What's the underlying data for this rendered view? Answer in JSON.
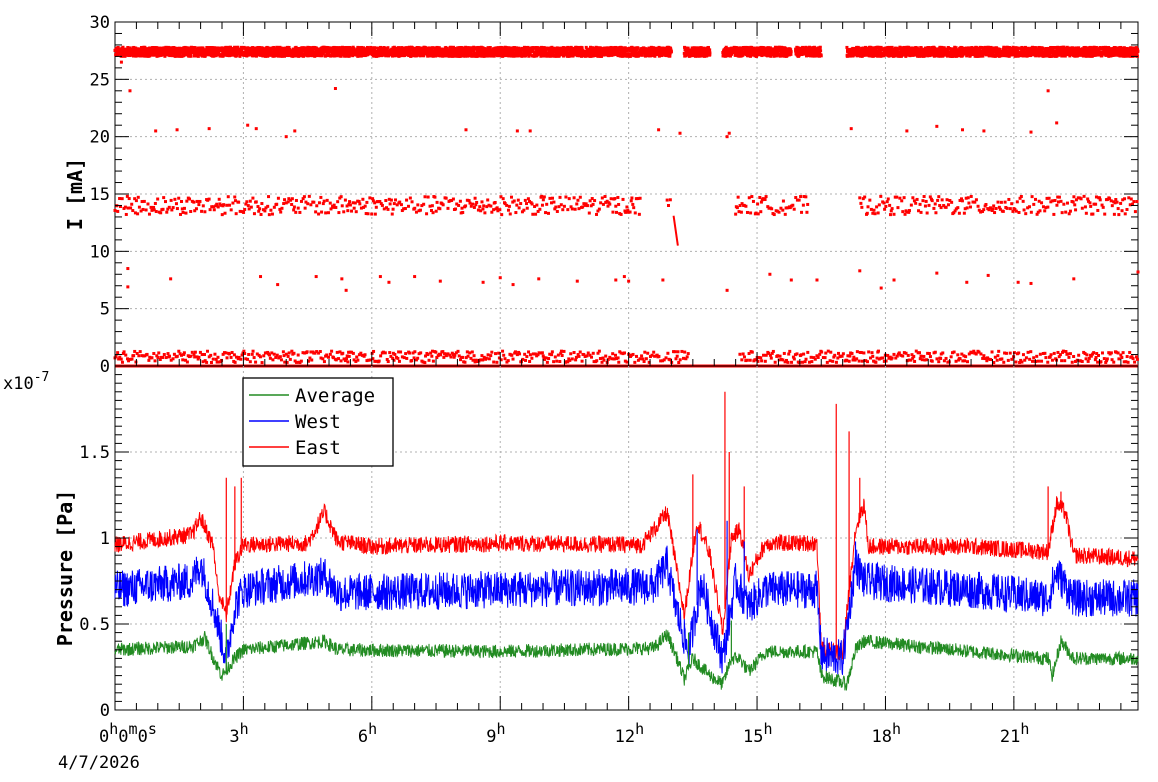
{
  "chart_data": [
    {
      "type": "scatter",
      "ylabel": "I [mA]",
      "ylim": [
        0,
        30
      ],
      "yticks": [
        0,
        5,
        10,
        15,
        20,
        25,
        30
      ],
      "grid": true,
      "x_unit": "hours",
      "xlim": [
        0,
        23.9
      ],
      "series": [
        {
          "color": "#ff0000",
          "bands": [
            {
              "y": 27.4,
              "spread": 0.4,
              "density": "dense",
              "segments": [
                [
                  0,
                  13.0
                ],
                [
                  13.3,
                  13.9
                ],
                [
                  14.2,
                  15.8
                ],
                [
                  15.9,
                  16.5
                ],
                [
                  17.1,
                  23.9
                ]
              ]
            },
            {
              "y": 14.0,
              "spread": 0.8,
              "density": "medium",
              "segments": [
                [
                  0,
                  12.3
                ],
                [
                  12.9,
                  13.0
                ],
                [
                  14.5,
                  16.2
                ],
                [
                  17.4,
                  23.9
                ]
              ]
            },
            {
              "y": 0.8,
              "spread": 0.5,
              "density": "medium",
              "segments": [
                [
                  0,
                  13.4
                ],
                [
                  14.6,
                  23.9
                ]
              ]
            },
            {
              "y": 0.0,
              "spread": 0.0,
              "density": "line",
              "segments": [
                [
                  0,
                  23.9
                ]
              ]
            }
          ],
          "points": [
            [
              0.15,
              26.5
            ],
            [
              0.35,
              24.0
            ],
            [
              0.95,
              20.5
            ],
            [
              1.45,
              20.6
            ],
            [
              2.2,
              20.7
            ],
            [
              3.1,
              21.0
            ],
            [
              3.3,
              20.7
            ],
            [
              4.0,
              20.0
            ],
            [
              4.2,
              20.5
            ],
            [
              5.15,
              24.2
            ],
            [
              8.2,
              20.6
            ],
            [
              9.4,
              20.5
            ],
            [
              9.7,
              20.5
            ],
            [
              12.7,
              20.6
            ],
            [
              13.2,
              20.3
            ],
            [
              14.3,
              20.0
            ],
            [
              14.35,
              20.3
            ],
            [
              17.2,
              20.7
            ],
            [
              18.5,
              20.5
            ],
            [
              19.2,
              20.9
            ],
            [
              19.8,
              20.6
            ],
            [
              20.3,
              20.5
            ],
            [
              21.4,
              20.4
            ],
            [
              21.8,
              24.0
            ],
            [
              22.0,
              21.2
            ],
            [
              0.3,
              8.5
            ],
            [
              0.3,
              6.9
            ],
            [
              1.3,
              7.6
            ],
            [
              3.4,
              7.8
            ],
            [
              3.8,
              7.1
            ],
            [
              4.7,
              7.8
            ],
            [
              5.3,
              7.6
            ],
            [
              5.4,
              6.6
            ],
            [
              6.2,
              7.8
            ],
            [
              6.4,
              7.3
            ],
            [
              7.0,
              7.8
            ],
            [
              7.6,
              7.4
            ],
            [
              8.6,
              7.3
            ],
            [
              9.0,
              7.7
            ],
            [
              9.3,
              7.1
            ],
            [
              9.9,
              7.6
            ],
            [
              10.8,
              7.4
            ],
            [
              11.7,
              7.5
            ],
            [
              11.9,
              7.8
            ],
            [
              12.0,
              7.4
            ],
            [
              12.8,
              7.5
            ],
            [
              14.3,
              6.6
            ],
            [
              15.3,
              8.0
            ],
            [
              15.8,
              7.5
            ],
            [
              16.4,
              7.5
            ],
            [
              17.4,
              8.3
            ],
            [
              17.9,
              6.8
            ],
            [
              18.2,
              7.5
            ],
            [
              19.2,
              8.1
            ],
            [
              19.9,
              7.3
            ],
            [
              20.4,
              7.9
            ],
            [
              21.1,
              7.3
            ],
            [
              21.4,
              7.2
            ],
            [
              22.4,
              7.6
            ],
            [
              23.9,
              8.2
            ]
          ],
          "ramp": [
            [
              13.05,
              13.1
            ],
            [
              13.15,
              10.5
            ]
          ]
        }
      ]
    },
    {
      "type": "line",
      "ylabel": "Pressure [Pa]",
      "exponent_label": "x10",
      "exponent_power": "-7",
      "ylim": [
        0,
        2.0
      ],
      "yticks": [
        0,
        0.5,
        1,
        1.5
      ],
      "ytick_labels": [
        "0",
        "0.5",
        "1",
        "1.5"
      ],
      "grid": true,
      "x_unit": "hours",
      "xlim": [
        0,
        23.9
      ],
      "xticks": [
        0,
        3,
        6,
        9,
        12,
        15,
        18,
        21
      ],
      "xtick_main": [
        "0",
        "3",
        "6",
        "9",
        "12",
        "15",
        "18",
        "21"
      ],
      "xtick_sup": [
        "hm",
        "h",
        "h",
        "h",
        "h",
        "h",
        "h",
        "h"
      ],
      "first_tick_tail": {
        "zero": "0",
        "sec_main": "0",
        "sec_sup": "s"
      },
      "date_label": "4/7/2026",
      "legend": {
        "position": "top-left",
        "entries": [
          {
            "name": "Average",
            "color": "#228b22"
          },
          {
            "name": "West",
            "color": "#0000ff"
          },
          {
            "name": "East",
            "color": "#ff0000"
          }
        ]
      },
      "series": [
        {
          "name": "East",
          "color": "#ff0000",
          "noise": 0.05,
          "points": [
            [
              0,
              0.96
            ],
            [
              1.8,
              1.02
            ],
            [
              2.0,
              1.12
            ],
            [
              2.3,
              0.95
            ],
            [
              2.4,
              0.7
            ],
            [
              2.6,
              0.55
            ],
            [
              2.8,
              0.85
            ],
            [
              3.0,
              0.96
            ],
            [
              4.5,
              0.97
            ],
            [
              4.9,
              1.15
            ],
            [
              5.2,
              0.98
            ],
            [
              6.0,
              0.95
            ],
            [
              9.0,
              0.97
            ],
            [
              12.3,
              0.96
            ],
            [
              12.6,
              1.05
            ],
            [
              12.9,
              1.15
            ],
            [
              13.1,
              0.85
            ],
            [
              13.3,
              0.55
            ],
            [
              13.6,
              1.1
            ],
            [
              13.9,
              0.9
            ],
            [
              14.2,
              0.45
            ],
            [
              14.4,
              1.0
            ],
            [
              14.6,
              1.05
            ],
            [
              14.8,
              0.78
            ],
            [
              15.2,
              0.97
            ],
            [
              16.4,
              0.97
            ],
            [
              16.5,
              0.35
            ],
            [
              17.0,
              0.33
            ],
            [
              17.3,
              1.05
            ],
            [
              17.5,
              1.2
            ],
            [
              17.6,
              0.95
            ],
            [
              20.0,
              0.95
            ],
            [
              21.8,
              0.92
            ],
            [
              22.0,
              1.2
            ],
            [
              22.2,
              1.15
            ],
            [
              22.4,
              0.9
            ],
            [
              23.9,
              0.88
            ]
          ],
          "spikes": [
            [
              2.6,
              1.35
            ],
            [
              2.8,
              1.3
            ],
            [
              2.95,
              1.35
            ],
            [
              13.5,
              1.37
            ],
            [
              14.25,
              1.85
            ],
            [
              14.35,
              1.5
            ],
            [
              14.7,
              1.3
            ],
            [
              16.85,
              1.78
            ],
            [
              17.15,
              1.62
            ],
            [
              17.4,
              1.35
            ],
            [
              21.8,
              1.3
            ],
            [
              22.1,
              1.27
            ]
          ]
        },
        {
          "name": "West",
          "color": "#0000ff",
          "noise": 0.11,
          "points": [
            [
              0,
              0.7
            ],
            [
              1.8,
              0.75
            ],
            [
              2.0,
              0.85
            ],
            [
              2.3,
              0.6
            ],
            [
              2.6,
              0.3
            ],
            [
              2.8,
              0.6
            ],
            [
              3.0,
              0.7
            ],
            [
              4.9,
              0.78
            ],
            [
              5.2,
              0.68
            ],
            [
              9.0,
              0.7
            ],
            [
              12.6,
              0.72
            ],
            [
              12.9,
              0.85
            ],
            [
              13.1,
              0.6
            ],
            [
              13.4,
              0.33
            ],
            [
              13.7,
              0.75
            ],
            [
              13.9,
              0.55
            ],
            [
              14.2,
              0.3
            ],
            [
              14.5,
              0.75
            ],
            [
              14.8,
              0.6
            ],
            [
              15.2,
              0.7
            ],
            [
              16.4,
              0.7
            ],
            [
              16.5,
              0.32
            ],
            [
              17.0,
              0.3
            ],
            [
              17.3,
              0.85
            ],
            [
              17.5,
              0.75
            ],
            [
              20.0,
              0.7
            ],
            [
              21.8,
              0.65
            ],
            [
              22.0,
              0.8
            ],
            [
              22.4,
              0.65
            ],
            [
              23.9,
              0.65
            ]
          ],
          "spikes": [
            [
              13.6,
              1.05
            ],
            [
              14.3,
              1.1
            ],
            [
              14.7,
              0.98
            ],
            [
              17.3,
              0.98
            ]
          ]
        },
        {
          "name": "Average",
          "color": "#228b22",
          "noise": 0.04,
          "points": [
            [
              0,
              0.35
            ],
            [
              1.8,
              0.37
            ],
            [
              2.1,
              0.42
            ],
            [
              2.3,
              0.3
            ],
            [
              2.5,
              0.2
            ],
            [
              2.8,
              0.3
            ],
            [
              3.0,
              0.35
            ],
            [
              4.9,
              0.4
            ],
            [
              5.2,
              0.35
            ],
            [
              9.0,
              0.34
            ],
            [
              12.6,
              0.36
            ],
            [
              12.9,
              0.44
            ],
            [
              13.1,
              0.32
            ],
            [
              13.3,
              0.18
            ],
            [
              13.5,
              0.3
            ],
            [
              13.9,
              0.2
            ],
            [
              14.2,
              0.15
            ],
            [
              14.4,
              0.3
            ],
            [
              14.6,
              0.3
            ],
            [
              14.8,
              0.22
            ],
            [
              15.2,
              0.34
            ],
            [
              16.4,
              0.34
            ],
            [
              16.5,
              0.2
            ],
            [
              17.1,
              0.15
            ],
            [
              17.3,
              0.35
            ],
            [
              17.5,
              0.4
            ],
            [
              20.0,
              0.34
            ],
            [
              21.8,
              0.3
            ],
            [
              21.9,
              0.2
            ],
            [
              22.1,
              0.4
            ],
            [
              22.4,
              0.3
            ],
            [
              23.9,
              0.3
            ]
          ],
          "spikes": [
            [
              2.6,
              0.5
            ],
            [
              13.4,
              0.45
            ],
            [
              14.4,
              0.52
            ]
          ]
        }
      ]
    }
  ]
}
